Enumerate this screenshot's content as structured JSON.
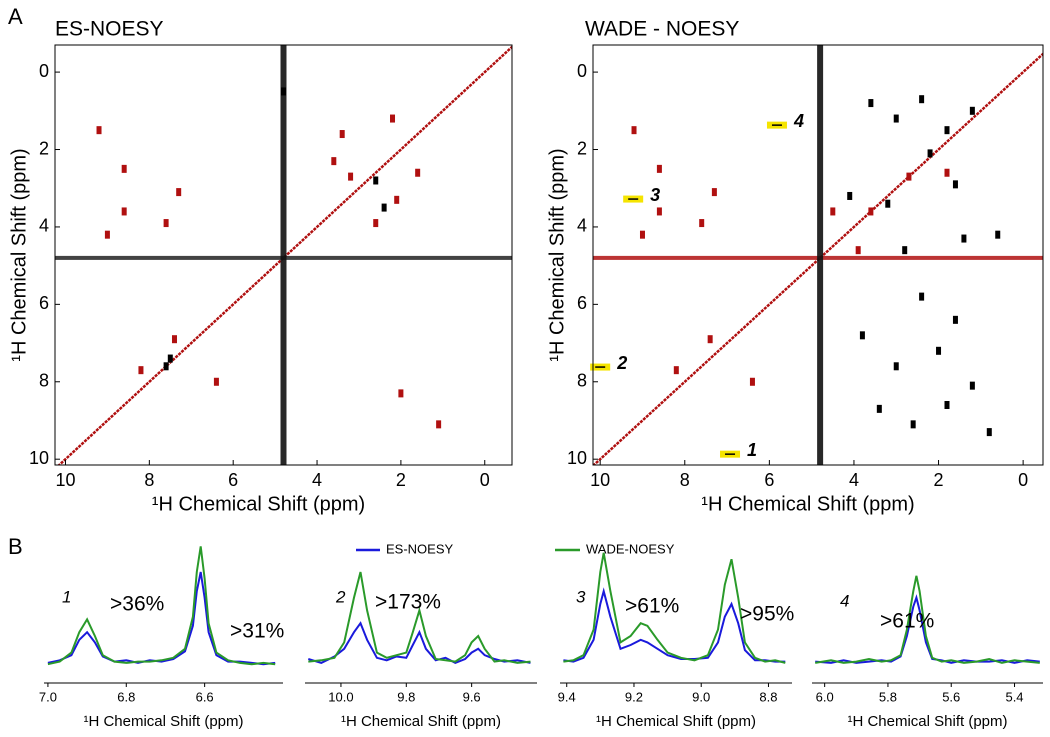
{
  "chart_data": [
    {
      "type": "nmr2d",
      "panel_label": "A",
      "title": "ES-NOESY",
      "xlabel": "¹H Chemical Shift (ppm)",
      "ylabel": "¹H Chemical Shift (ppm)",
      "xlim": [
        10.25,
        -0.65
      ],
      "ylim": [
        -0.7,
        10.15
      ],
      "xticks": [
        10,
        8,
        6,
        4,
        2,
        0
      ],
      "yticks": [
        0,
        2,
        4,
        6,
        8,
        10
      ],
      "diagonal": true,
      "solvent_shift": 4.8,
      "series": [
        {
          "color": "#b01010",
          "x": [
            9.2,
            8.6,
            8.6,
            7.6,
            7.3,
            3.6,
            3.4,
            2.6,
            2.1,
            1.6,
            2.0,
            1.1,
            7.4,
            8.2,
            3.2,
            2.2,
            9.0,
            6.4
          ],
          "y": [
            1.5,
            2.5,
            3.6,
            3.9,
            3.1,
            2.3,
            1.6,
            3.9,
            3.3,
            2.6,
            8.3,
            9.1,
            6.9,
            7.7,
            2.7,
            1.2,
            4.2,
            8.0
          ]
        },
        {
          "color": "#000000",
          "x": [
            7.5,
            2.6,
            2.4,
            7.6,
            4.8
          ],
          "y": [
            7.4,
            2.8,
            3.5,
            7.6,
            0.5
          ]
        }
      ]
    },
    {
      "type": "nmr2d",
      "title": "WADE - NOESY",
      "xlabel": "¹H Chemical Shift (ppm)",
      "ylabel": "¹H Chemical Shift (ppm)",
      "xlim": [
        10.17,
        -0.47
      ],
      "ylim": [
        -0.7,
        10.15
      ],
      "xticks": [
        10,
        8,
        6,
        4,
        2,
        0
      ],
      "yticks": [
        0,
        2,
        4,
        6,
        8,
        10
      ],
      "diagonal": true,
      "solvent_shift": 4.8,
      "series": [
        {
          "color": "#b01010",
          "x": [
            9.2,
            8.6,
            8.6,
            7.6,
            7.3,
            8.2,
            7.4,
            9.0,
            6.4,
            3.6,
            2.7,
            1.8,
            4.5,
            3.9
          ],
          "y": [
            1.5,
            2.5,
            3.6,
            3.9,
            3.1,
            7.7,
            6.9,
            4.2,
            8.0,
            3.6,
            2.7,
            2.6,
            3.6,
            4.6
          ]
        },
        {
          "color": "#000000",
          "x": [
            3.6,
            3.0,
            2.4,
            1.8,
            1.2,
            2.2,
            1.6,
            3.2,
            0.6,
            2.8,
            1.4,
            3.8,
            3.0,
            2.0,
            1.2,
            3.4,
            2.6,
            1.8,
            0.8,
            4.1,
            2.4,
            1.6
          ],
          "y": [
            0.8,
            1.2,
            0.7,
            1.5,
            1.0,
            2.1,
            2.9,
            3.4,
            4.2,
            4.6,
            4.3,
            6.8,
            7.6,
            7.2,
            8.1,
            8.7,
            9.1,
            8.6,
            9.3,
            3.2,
            5.8,
            6.4
          ]
        }
      ],
      "highlights": [
        {
          "label": "1",
          "x": 6.93,
          "y": 9.87
        },
        {
          "label": "2",
          "x": 10.0,
          "y": 7.62
        },
        {
          "label": "3",
          "x": 9.22,
          "y": 3.28
        },
        {
          "label": "4",
          "x": 5.82,
          "y": 1.37
        }
      ]
    },
    {
      "type": "spectra",
      "panel_label": "B",
      "xlabel": "¹H Chemical Shift (ppm)",
      "ylim": [
        0,
        1
      ],
      "series": [
        {
          "name": "ES-NOESY",
          "color": "#1a1adc"
        },
        {
          "name": "WADE-NOESY",
          "color": "#2a9a2a"
        }
      ],
      "panels": [
        {
          "label": "1",
          "xlim": [
            7.01,
            6.4
          ],
          "xticks": [
            {
              "value": 7,
              "label": "7.0"
            },
            6.8,
            6.6
          ],
          "annotations": [
            ">36%",
            ">31%"
          ],
          "x": [
            7.0,
            6.97,
            6.94,
            6.92,
            6.9,
            6.88,
            6.86,
            6.83,
            6.8,
            6.77,
            6.74,
            6.71,
            6.68,
            6.65,
            6.63,
            6.62,
            6.61,
            6.6,
            6.59,
            6.57,
            6.54,
            6.51,
            6.48,
            6.45,
            6.42
          ],
          "values": [
            [
              0.04,
              0.06,
              0.1,
              0.22,
              0.28,
              0.2,
              0.09,
              0.05,
              0.06,
              0.04,
              0.06,
              0.05,
              0.07,
              0.13,
              0.33,
              0.6,
              0.75,
              0.55,
              0.28,
              0.1,
              0.05,
              0.05,
              0.04,
              0.03,
              0.04
            ],
            [
              0.03,
              0.05,
              0.12,
              0.28,
              0.38,
              0.25,
              0.1,
              0.05,
              0.04,
              0.05,
              0.05,
              0.06,
              0.08,
              0.15,
              0.4,
              0.75,
              0.95,
              0.7,
              0.35,
              0.12,
              0.06,
              0.04,
              0.03,
              0.04,
              0.03
            ]
          ]
        },
        {
          "label": "2",
          "xlim": [
            10.11,
            9.4
          ],
          "xticks": [
            {
              "value": 10,
              "label": "10.0"
            },
            9.8,
            9.6
          ],
          "annotations": [
            ">173%"
          ],
          "x": [
            10.1,
            10.06,
            10.02,
            9.99,
            9.96,
            9.94,
            9.92,
            9.89,
            9.86,
            9.83,
            9.8,
            9.78,
            9.76,
            9.74,
            9.71,
            9.68,
            9.65,
            9.62,
            9.6,
            9.58,
            9.56,
            9.53,
            9.5,
            9.46,
            9.42
          ],
          "values": [
            [
              0.07,
              0.04,
              0.09,
              0.15,
              0.28,
              0.35,
              0.22,
              0.08,
              0.06,
              0.09,
              0.08,
              0.18,
              0.28,
              0.15,
              0.06,
              0.08,
              0.04,
              0.07,
              0.12,
              0.15,
              0.1,
              0.07,
              0.05,
              0.06,
              0.04
            ],
            [
              0.05,
              0.06,
              0.08,
              0.2,
              0.55,
              0.75,
              0.45,
              0.12,
              0.08,
              0.1,
              0.12,
              0.28,
              0.45,
              0.25,
              0.07,
              0.06,
              0.05,
              0.1,
              0.2,
              0.25,
              0.15,
              0.05,
              0.06,
              0.04,
              0.05
            ]
          ]
        },
        {
          "label": "3",
          "xlim": [
            9.42,
            8.73
          ],
          "xticks": [
            9.4,
            9.2,
            {
              "value": 9,
              "label": "9.0"
            },
            8.8
          ],
          "annotations": [
            ">61%",
            ">95%"
          ],
          "x": [
            9.41,
            9.38,
            9.35,
            9.32,
            9.3,
            9.29,
            9.27,
            9.24,
            9.21,
            9.18,
            9.16,
            9.13,
            9.1,
            9.06,
            9.02,
            8.98,
            8.95,
            8.93,
            8.91,
            8.89,
            8.87,
            8.84,
            8.81,
            8.78,
            8.75
          ],
          "values": [
            [
              0.06,
              0.05,
              0.08,
              0.22,
              0.5,
              0.6,
              0.4,
              0.15,
              0.18,
              0.22,
              0.2,
              0.15,
              0.1,
              0.07,
              0.07,
              0.08,
              0.2,
              0.4,
              0.5,
              0.35,
              0.14,
              0.06,
              0.06,
              0.05,
              0.05
            ],
            [
              0.05,
              0.06,
              0.1,
              0.3,
              0.75,
              0.9,
              0.6,
              0.2,
              0.25,
              0.35,
              0.33,
              0.22,
              0.12,
              0.08,
              0.06,
              0.1,
              0.3,
              0.65,
              0.85,
              0.55,
              0.2,
              0.08,
              0.05,
              0.06,
              0.04
            ]
          ]
        },
        {
          "label": "4",
          "xlim": [
            6.04,
            5.31
          ],
          "xticks": [
            {
              "value": 6,
              "label": "6.0"
            },
            5.8,
            5.6,
            5.4
          ],
          "annotations": [
            ">61%"
          ],
          "x": [
            6.03,
            5.98,
            5.94,
            5.9,
            5.86,
            5.82,
            5.79,
            5.76,
            5.74,
            5.72,
            5.71,
            5.7,
            5.68,
            5.66,
            5.63,
            5.6,
            5.56,
            5.52,
            5.48,
            5.44,
            5.4,
            5.36,
            5.32
          ],
          "values": [
            [
              0.05,
              0.04,
              0.06,
              0.04,
              0.05,
              0.06,
              0.05,
              0.09,
              0.25,
              0.48,
              0.55,
              0.45,
              0.2,
              0.07,
              0.06,
              0.04,
              0.06,
              0.05,
              0.05,
              0.06,
              0.04,
              0.06,
              0.05
            ],
            [
              0.04,
              0.06,
              0.04,
              0.05,
              0.07,
              0.05,
              0.06,
              0.1,
              0.3,
              0.6,
              0.72,
              0.6,
              0.25,
              0.08,
              0.05,
              0.06,
              0.04,
              0.05,
              0.07,
              0.04,
              0.06,
              0.05,
              0.04
            ]
          ]
        }
      ]
    }
  ]
}
